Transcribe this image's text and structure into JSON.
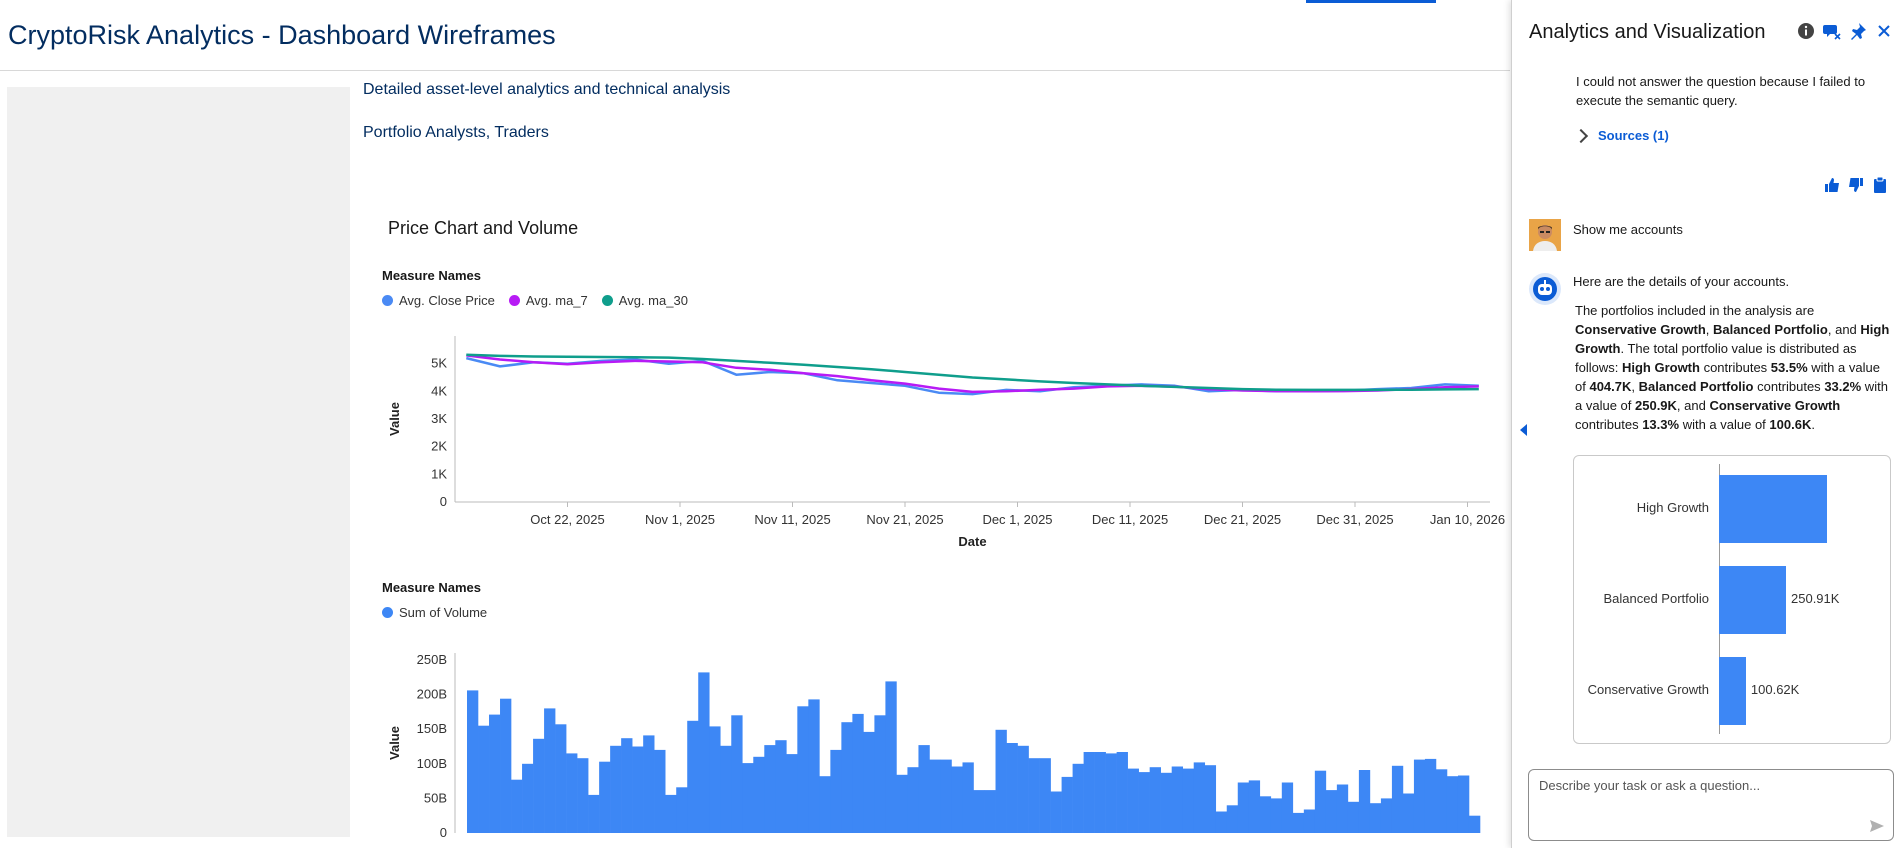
{
  "header": {
    "title": "CryptoRisk Analytics - Dashboard Wireframes"
  },
  "main": {
    "description": "Detailed asset-level analytics and technical analysis",
    "audience": "Portfolio Analysts, Traders"
  },
  "chart_data": [
    {
      "type": "line",
      "title": "Price Chart and Volume",
      "legend_title": "Measure Names",
      "xlabel": "Date",
      "ylabel": "Value",
      "ylim": [
        0,
        6000
      ],
      "yticks": [
        "0",
        "1K",
        "2K",
        "3K",
        "4K",
        "5K"
      ],
      "xticks": [
        "Oct 22, 2025",
        "Nov 1, 2025",
        "Nov 11, 2025",
        "Nov 21, 2025",
        "Dec 1, 2025",
        "Dec 11, 2025",
        "Dec 21, 2025",
        "Dec 31, 2025",
        "Jan 10, 2026"
      ],
      "legend_placement": "top-left",
      "x": [
        "2025-10-13",
        "2025-10-16",
        "2025-10-19",
        "2025-10-22",
        "2025-10-25",
        "2025-10-28",
        "2025-10-31",
        "2025-11-03",
        "2025-11-06",
        "2025-11-09",
        "2025-11-12",
        "2025-11-15",
        "2025-11-18",
        "2025-11-21",
        "2025-11-24",
        "2025-11-27",
        "2025-11-30",
        "2025-12-03",
        "2025-12-06",
        "2025-12-09",
        "2025-12-12",
        "2025-12-15",
        "2025-12-18",
        "2025-12-21",
        "2025-12-24",
        "2025-12-27",
        "2025-12-30",
        "2026-01-02",
        "2026-01-05",
        "2026-01-08",
        "2026-01-11"
      ],
      "series": [
        {
          "name": "Avg. Close Price",
          "color": "#4a8af4",
          "values": [
            5200,
            4900,
            5050,
            5000,
            5100,
            5150,
            5000,
            5100,
            4600,
            4700,
            4650,
            4400,
            4300,
            4200,
            3950,
            3900,
            4050,
            4000,
            4150,
            4200,
            4250,
            4200,
            4000,
            4050,
            4000,
            4000,
            4020,
            4080,
            4120,
            4250,
            4200
          ]
        },
        {
          "name": "Avg. ma_7",
          "color": "#b71bf5",
          "values": [
            5300,
            5150,
            5050,
            4980,
            5050,
            5100,
            5080,
            5050,
            4850,
            4780,
            4650,
            4550,
            4400,
            4280,
            4100,
            3980,
            4000,
            4060,
            4100,
            4180,
            4200,
            4170,
            4080,
            4030,
            4010,
            4000,
            4010,
            4030,
            4080,
            4150,
            4180
          ]
        },
        {
          "name": "Avg. ma_30",
          "color": "#0f9e8c",
          "values": [
            5320,
            5280,
            5260,
            5250,
            5240,
            5230,
            5220,
            5170,
            5100,
            5030,
            4960,
            4880,
            4800,
            4700,
            4600,
            4500,
            4430,
            4360,
            4300,
            4250,
            4200,
            4160,
            4120,
            4080,
            4060,
            4050,
            4050,
            4050,
            4060,
            4070,
            4080
          ]
        }
      ]
    },
    {
      "type": "bar",
      "legend_title": "Measure Names",
      "ylabel": "Value",
      "ylim": [
        0,
        260
      ],
      "yticks": [
        "0",
        "50B",
        "100B",
        "150B",
        "200B",
        "250B"
      ],
      "legend_placement": "top-left",
      "series": [
        {
          "name": "Sum of Volume",
          "color": "#3d87f5",
          "values": [
            206,
            155,
            171,
            194,
            77,
            100,
            136,
            180,
            157,
            115,
            108,
            55,
            103,
            126,
            137,
            125,
            141,
            120,
            55,
            66,
            162,
            232,
            154,
            126,
            170,
            101,
            110,
            127,
            134,
            114,
            183,
            193,
            82,
            120,
            160,
            172,
            146,
            170,
            219,
            84,
            95,
            127,
            106,
            106,
            96,
            102,
            62,
            62,
            149,
            130,
            126,
            108,
            108,
            60,
            81,
            100,
            117,
            117,
            115,
            117,
            93,
            88,
            95,
            87,
            96,
            93,
            102,
            98,
            31,
            40,
            73,
            76,
            53,
            50,
            73,
            29,
            34,
            90,
            62,
            70,
            45,
            91,
            43,
            50,
            97,
            57,
            106,
            107,
            92,
            82,
            83,
            25
          ]
        }
      ]
    }
  ],
  "panel": {
    "title": "Analytics and Visualization",
    "error_text": "I could not answer the question because I failed to execute the semantic query.",
    "sources_label": "Sources (1)",
    "user_message": "Show me accounts",
    "bot_intro": "Here are the details of your accounts.",
    "summary": {
      "t1": "The portfolios included in the analysis are ",
      "b1": "Conservative Growth",
      "t2": ", ",
      "b2": "Balanced Portfolio",
      "t3": ", and ",
      "b3": "High Growth",
      "t4": ". The total portfolio value is distributed as follows: ",
      "b4": "High Growth",
      "t5": " contributes ",
      "b5": "53.5%",
      "t6": " with a value of ",
      "b6": "404.7K",
      "t7": ", ",
      "b7": "Balanced Portfolio",
      "t8": " contributes ",
      "b8": "33.2%",
      "t9": " with a value of ",
      "b9": "250.9K",
      "t10": ", and ",
      "b10": "Conservative Growth",
      "t11": " contributes ",
      "b11": "13.3%",
      "t12": " with a value of ",
      "b12": "100.6K",
      "t13": "."
    },
    "portfolio_chart": {
      "type": "bar",
      "orientation": "horizontal",
      "color": "#3d87f5",
      "categories": [
        "High Growth",
        "Balanced Portfolio",
        "Conservative Growth"
      ],
      "values": [
        404.7,
        250.91,
        100.62
      ],
      "value_labels": [
        "",
        "250.91K",
        "100.62K"
      ],
      "xlim": [
        0,
        404.7
      ]
    },
    "input_placeholder": "Describe your task or ask a question..."
  }
}
